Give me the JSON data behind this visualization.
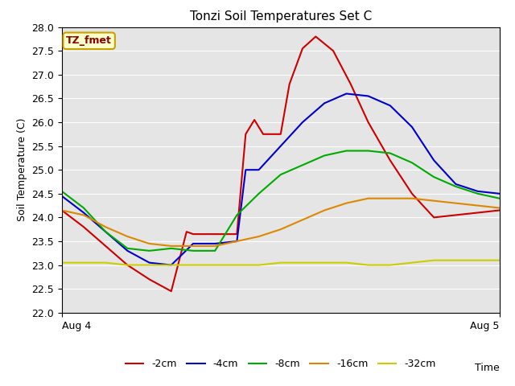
{
  "title": "Tonzi Soil Temperatures Set C",
  "ylabel": "Soil Temperature (C)",
  "time_label": "Time",
  "xlim": [
    0,
    1
  ],
  "ylim": [
    22.0,
    28.0
  ],
  "yticks": [
    22.0,
    22.5,
    23.0,
    23.5,
    24.0,
    24.5,
    25.0,
    25.5,
    26.0,
    26.5,
    27.0,
    27.5,
    28.0
  ],
  "xtick_positions": [
    0.0,
    1.0
  ],
  "xtick_labels": [
    "Aug 4",
    "Aug 5"
  ],
  "background_color": "#e5e5e5",
  "grid_color": "#ffffff",
  "fig_bg": "#ffffff",
  "annotation_text": "TZ_fmet",
  "annotation_color": "#8b0000",
  "annotation_bg": "#ffffcc",
  "annotation_border": "#c8a000",
  "series": {
    "-2cm": {
      "color": "#cc0000",
      "x": [
        0.0,
        0.05,
        0.1,
        0.15,
        0.2,
        0.25,
        0.285,
        0.3,
        0.32,
        0.38,
        0.4,
        0.42,
        0.44,
        0.46,
        0.48,
        0.5,
        0.52,
        0.55,
        0.58,
        0.62,
        0.66,
        0.7,
        0.75,
        0.8,
        0.85,
        0.9,
        0.95,
        1.0
      ],
      "y": [
        24.15,
        23.8,
        23.4,
        23.0,
        22.7,
        22.45,
        23.7,
        23.65,
        23.65,
        23.65,
        23.65,
        25.75,
        26.05,
        25.75,
        25.75,
        25.75,
        26.8,
        27.55,
        27.8,
        27.5,
        26.8,
        26.0,
        25.2,
        24.5,
        24.0,
        24.05,
        24.1,
        24.15
      ]
    },
    "-4cm": {
      "color": "#0000cc",
      "x": [
        0.0,
        0.05,
        0.1,
        0.15,
        0.2,
        0.25,
        0.3,
        0.35,
        0.4,
        0.42,
        0.45,
        0.5,
        0.55,
        0.6,
        0.65,
        0.7,
        0.75,
        0.8,
        0.85,
        0.9,
        0.95,
        1.0
      ],
      "y": [
        24.45,
        24.1,
        23.7,
        23.3,
        23.05,
        23.0,
        23.45,
        23.45,
        23.5,
        25.0,
        25.0,
        25.5,
        26.0,
        26.4,
        26.6,
        26.55,
        26.35,
        25.9,
        25.2,
        24.7,
        24.55,
        24.5
      ]
    },
    "-8cm": {
      "color": "#00aa00",
      "x": [
        0.0,
        0.05,
        0.1,
        0.15,
        0.2,
        0.25,
        0.3,
        0.35,
        0.4,
        0.45,
        0.5,
        0.55,
        0.6,
        0.65,
        0.7,
        0.75,
        0.8,
        0.85,
        0.9,
        0.95,
        1.0
      ],
      "y": [
        24.55,
        24.2,
        23.7,
        23.35,
        23.3,
        23.35,
        23.3,
        23.3,
        24.05,
        24.5,
        24.9,
        25.1,
        25.3,
        25.4,
        25.4,
        25.35,
        25.15,
        24.85,
        24.65,
        24.5,
        24.4
      ]
    },
    "-16cm": {
      "color": "#dd8800",
      "x": [
        0.0,
        0.05,
        0.1,
        0.15,
        0.2,
        0.25,
        0.3,
        0.35,
        0.4,
        0.45,
        0.5,
        0.55,
        0.6,
        0.65,
        0.7,
        0.75,
        0.8,
        0.85,
        0.9,
        0.95,
        1.0
      ],
      "y": [
        24.15,
        24.05,
        23.8,
        23.6,
        23.45,
        23.4,
        23.4,
        23.4,
        23.5,
        23.6,
        23.75,
        23.95,
        24.15,
        24.3,
        24.4,
        24.4,
        24.4,
        24.35,
        24.3,
        24.25,
        24.2
      ]
    },
    "-32cm": {
      "color": "#cccc00",
      "x": [
        0.0,
        0.05,
        0.1,
        0.15,
        0.2,
        0.25,
        0.3,
        0.35,
        0.4,
        0.45,
        0.5,
        0.55,
        0.6,
        0.65,
        0.7,
        0.75,
        0.8,
        0.85,
        0.9,
        0.95,
        1.0
      ],
      "y": [
        23.05,
        23.05,
        23.05,
        23.0,
        23.0,
        23.0,
        23.0,
        23.0,
        23.0,
        23.0,
        23.05,
        23.05,
        23.05,
        23.05,
        23.0,
        23.0,
        23.05,
        23.1,
        23.1,
        23.1,
        23.1
      ]
    }
  },
  "legend_order": [
    "-2cm",
    "-4cm",
    "-8cm",
    "-16cm",
    "-32cm"
  ],
  "line_width": 1.5
}
